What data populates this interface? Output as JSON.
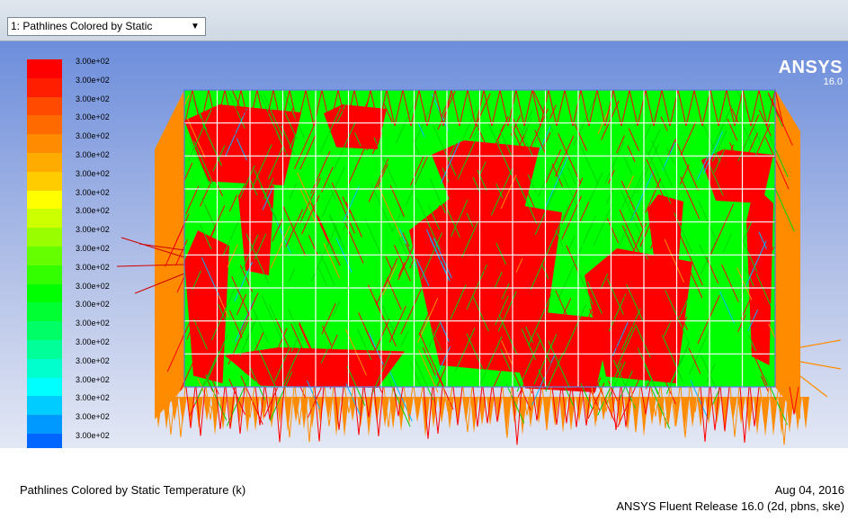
{
  "toolbar": {
    "view_select_label": "1: Pathlines Colored by Static"
  },
  "logo": {
    "name": "ANSYS",
    "version": "16.0"
  },
  "legend": {
    "labels": [
      "3.00e+02",
      "3.00e+02",
      "3.00e+02",
      "3.00e+02",
      "3.00e+02",
      "3.00e+02",
      "3.00e+02",
      "3.00e+02",
      "3.00e+02",
      "3.00e+02",
      "3.00e+02",
      "3.00e+02",
      "3.00e+02",
      "3.00e+02",
      "3.00e+02",
      "3.00e+02",
      "3.00e+02",
      "3.00e+02",
      "3.00e+02",
      "3.00e+02",
      "3.00e+02",
      "3.00e+02"
    ],
    "colors": [
      "#ff0000",
      "#ff1f00",
      "#ff4a00",
      "#ff6a00",
      "#ff8c00",
      "#ffab00",
      "#ffcc00",
      "#ffff00",
      "#ccff00",
      "#99ff00",
      "#66ff00",
      "#33ff00",
      "#00ff00",
      "#00ff33",
      "#00ff66",
      "#00ff99",
      "#00ffcc",
      "#00ffff",
      "#00ccff",
      "#0099ff",
      "#0066ff",
      "#0033ff",
      "#0000ff"
    ]
  },
  "caption": {
    "title": "Pathlines Colored by Static Temperature (k)",
    "date": "Aug 04, 2016",
    "release": "ANSYS Fluent Release 16.0 (2d, pbns, ske)"
  },
  "colors": {
    "red": "#ff0000",
    "green": "#00ff00",
    "orange": "#ff8c00",
    "grid": "#ffffff",
    "teal": "#00b4ff"
  }
}
